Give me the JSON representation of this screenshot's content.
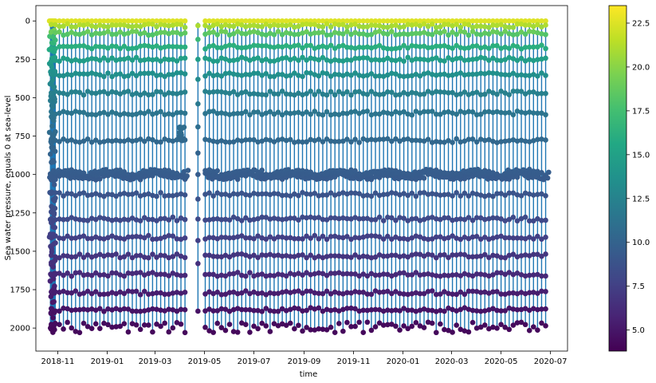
{
  "chart_data": {
    "type": "scatter",
    "description_of_marks": "vertical profile lines (blue) with scatter points colored by value (viridis colorbar)",
    "xlabel": "time",
    "ylabel": "Sea water pressure, equals 0 at sea-level",
    "y_inverted": true,
    "ylim": [
      2150,
      -100
    ],
    "xlim": [
      "2018-10-05",
      "2020-07-22"
    ],
    "x_ticks": [
      "2018-11",
      "2019-01",
      "2019-03",
      "2019-05",
      "2019-07",
      "2019-09",
      "2019-11",
      "2020-01",
      "2020-03",
      "2020-05",
      "2020-07"
    ],
    "y_ticks": [
      0,
      250,
      500,
      750,
      1000,
      1250,
      1500,
      1750,
      2000
    ],
    "colorbar": {
      "colormap": "viridis",
      "range": [
        3.8,
        23.5
      ],
      "ticks": [
        "5.0",
        "7.5",
        "10.0",
        "12.5",
        "15.0",
        "17.5",
        "20.0",
        "22.5"
      ]
    },
    "line_color": "#1f77b4",
    "profile_start": "2018-10-24",
    "profile_end": "2020-06-26",
    "profile_spacing_days": 5,
    "dense_start_profiles": [
      "2018-10-23",
      "2018-10-24",
      "2018-10-25",
      "2018-10-26",
      "2018-10-27",
      "2018-10-28"
    ],
    "gap": {
      "start": "2019-04-08",
      "end": "2019-05-01",
      "special_profile": "2019-04-23",
      "special_profile_bottom": 1890
    },
    "parking_depth_cluster": {
      "date": "2019-04-03",
      "pressure_min": 680,
      "pressure_max": 790
    },
    "parking_depth_mean": 1000,
    "surface_values": {
      "pressure": 0,
      "temperature": 23
    },
    "bottom_pressure_range": [
      1960,
      2030
    ],
    "profile_sample_pressures": [
      0,
      30,
      80,
      170,
      250,
      350,
      470,
      600,
      780,
      1000,
      1130,
      1290,
      1410,
      1530,
      1650,
      1770,
      1880,
      1990
    ],
    "temperature_profile": [
      {
        "pressure": 0,
        "temperature": 22.5
      },
      {
        "pressure": 50,
        "temperature": 20.0
      },
      {
        "pressure": 100,
        "temperature": 17.5
      },
      {
        "pressure": 200,
        "temperature": 15.5
      },
      {
        "pressure": 300,
        "temperature": 14.0
      },
      {
        "pressure": 500,
        "temperature": 12.0
      },
      {
        "pressure": 750,
        "temperature": 10.5
      },
      {
        "pressure": 1000,
        "temperature": 9.5
      },
      {
        "pressure": 1250,
        "temperature": 8.3
      },
      {
        "pressure": 1500,
        "temperature": 7.0
      },
      {
        "pressure": 1750,
        "temperature": 5.5
      },
      {
        "pressure": 2000,
        "temperature": 4.2
      }
    ]
  }
}
